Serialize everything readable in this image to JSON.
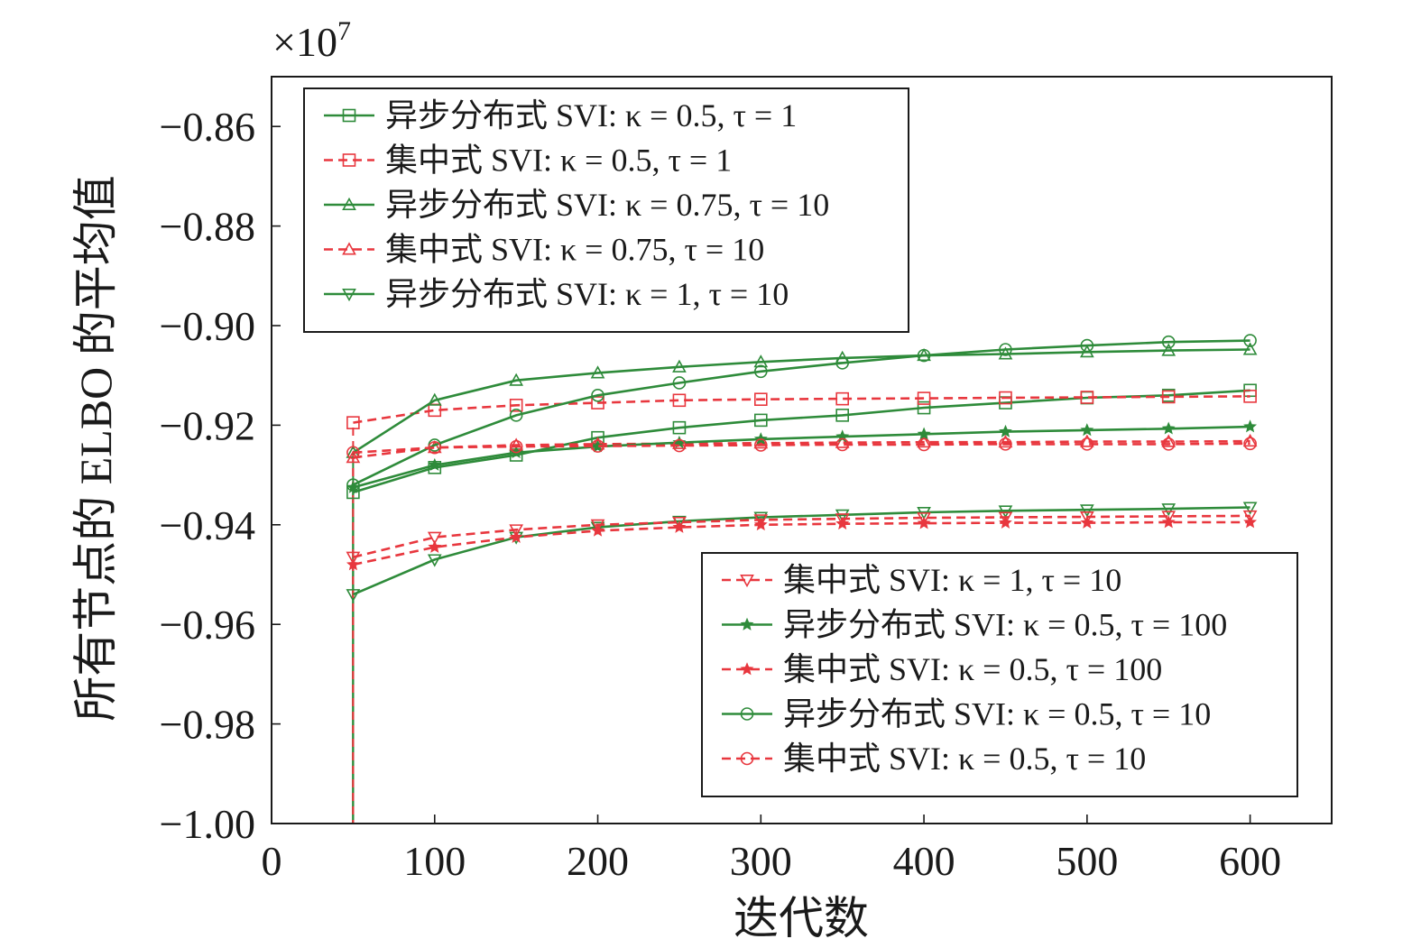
{
  "chart_data": {
    "type": "line",
    "title": "",
    "xlabel": "迭代数",
    "ylabel": "所有节点的 ELBO 的平均值",
    "y_multiplier_label": "×10",
    "y_multiplier_exponent": "7",
    "xlim": [
      0,
      650
    ],
    "ylim": [
      -1.0,
      -0.85
    ],
    "x_ticks": [
      0,
      100,
      200,
      300,
      400,
      500,
      600
    ],
    "x_tick_labels": [
      "0",
      "100",
      "200",
      "300",
      "400",
      "500",
      "600"
    ],
    "y_ticks": [
      -0.86,
      -0.88,
      -0.9,
      -0.92,
      -0.94,
      -0.96,
      -0.98,
      -1.0
    ],
    "y_tick_labels": [
      "−0.86",
      "−0.88",
      "−0.90",
      "−0.92",
      "−0.94",
      "−0.96",
      "−0.98",
      "−1.00"
    ],
    "grid": false,
    "x": [
      50,
      100,
      150,
      200,
      250,
      300,
      350,
      400,
      450,
      500,
      550,
      600
    ],
    "series": [
      {
        "name": "异步分布式 SVI: κ = 0.5, τ = 1",
        "color": "#2e8b3a",
        "dash": "solid",
        "marker": "square",
        "values": [
          -0.9335,
          -0.9285,
          -0.926,
          -0.9225,
          -0.9205,
          -0.919,
          -0.918,
          -0.9165,
          -0.9155,
          -0.9145,
          -0.914,
          -0.913
        ]
      },
      {
        "name": "集中式 SVI: κ = 0.5, τ = 1",
        "color": "#e8373e",
        "dash": "dashed",
        "marker": "square",
        "values": [
          -0.9195,
          -0.917,
          -0.916,
          -0.9155,
          -0.915,
          -0.9148,
          -0.9147,
          -0.9146,
          -0.9145,
          -0.9144,
          -0.9143,
          -0.9142
        ]
      },
      {
        "name": "异步分布式 SVI: κ = 0.75, τ = 10",
        "color": "#2e8b3a",
        "dash": "solid",
        "marker": "triangle-up",
        "values": [
          -0.9255,
          -0.915,
          -0.911,
          -0.9095,
          -0.9083,
          -0.9073,
          -0.9065,
          -0.906,
          -0.9057,
          -0.9053,
          -0.905,
          -0.9048
        ]
      },
      {
        "name": "集中式 SVI: κ = 0.75, τ = 10",
        "color": "#e8373e",
        "dash": "dashed",
        "marker": "triangle-up",
        "values": [
          -0.9265,
          -0.9245,
          -0.924,
          -0.9238,
          -0.9237,
          -0.9236,
          -0.9235,
          -0.9234,
          -0.9234,
          -0.9233,
          -0.9233,
          -0.9232
        ]
      },
      {
        "name": "异步分布式 SVI: κ = 1, τ = 10",
        "color": "#2e8b3a",
        "dash": "solid",
        "marker": "triangle-down",
        "values": [
          -0.954,
          -0.947,
          -0.9425,
          -0.9405,
          -0.9393,
          -0.9385,
          -0.938,
          -0.9375,
          -0.9372,
          -0.937,
          -0.9368,
          -0.9365
        ]
      },
      {
        "name": "集中式 SVI: κ = 1, τ = 10",
        "color": "#e8373e",
        "dash": "dashed",
        "marker": "triangle-down",
        "values": [
          -0.9465,
          -0.9425,
          -0.941,
          -0.94,
          -0.9395,
          -0.939,
          -0.9388,
          -0.9386,
          -0.9385,
          -0.9384,
          -0.9383,
          -0.9382
        ]
      },
      {
        "name": "异步分布式 SVI: κ = 0.5, τ = 100",
        "color": "#2e8b3a",
        "dash": "solid",
        "marker": "star",
        "values": [
          -0.9325,
          -0.928,
          -0.9255,
          -0.9243,
          -0.9235,
          -0.9228,
          -0.9223,
          -0.9218,
          -0.9213,
          -0.921,
          -0.9207,
          -0.9203
        ]
      },
      {
        "name": "集中式 SVI: κ = 0.5, τ = 100",
        "color": "#e8373e",
        "dash": "dashed",
        "marker": "star",
        "values": [
          -0.948,
          -0.9445,
          -0.9425,
          -0.9412,
          -0.9405,
          -0.94,
          -0.9398,
          -0.9397,
          -0.9396,
          -0.9396,
          -0.9395,
          -0.9395
        ]
      },
      {
        "name": "异步分布式 SVI: κ = 0.5, τ = 10",
        "color": "#2e8b3a",
        "dash": "solid",
        "marker": "circle",
        "values": [
          -0.932,
          -0.924,
          -0.918,
          -0.914,
          -0.9115,
          -0.9092,
          -0.9075,
          -0.906,
          -0.9048,
          -0.904,
          -0.9033,
          -0.903
        ]
      },
      {
        "name": "集中式 SVI: κ = 0.5, τ = 10",
        "color": "#e8373e",
        "dash": "dashed",
        "marker": "circle",
        "values": [
          -0.9255,
          -0.9245,
          -0.9243,
          -0.9242,
          -0.9241,
          -0.924,
          -0.9239,
          -0.9239,
          -0.9238,
          -0.9238,
          -0.9238,
          -0.9237
        ]
      }
    ],
    "legends": [
      {
        "placement": "top-left",
        "series_indices": [
          0,
          1,
          2,
          3,
          4
        ]
      },
      {
        "placement": "bottom-right",
        "series_indices": [
          5,
          6,
          7,
          8,
          9
        ]
      }
    ]
  }
}
